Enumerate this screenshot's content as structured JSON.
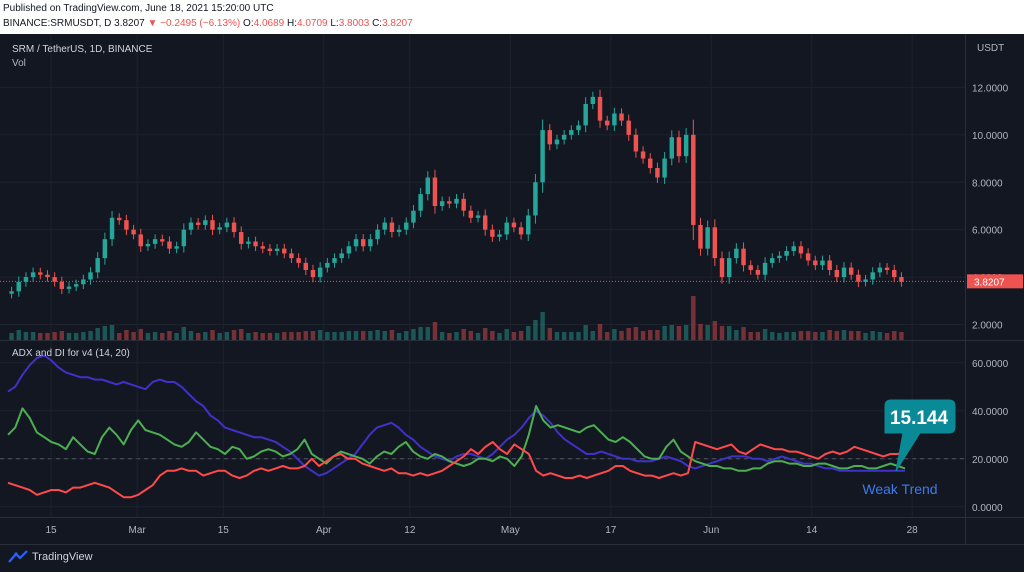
{
  "header": {
    "published": "Published on TradingView.com, June 18, 2021 15:20:00 UTC",
    "symbol": "BINANCE:SRMUSDT, D",
    "last": "3.8207",
    "change": "−0.2495 (−6.13%)",
    "o_label": "O:",
    "o_value": "4.0689",
    "h_label": "H:",
    "h_value": "4.0709",
    "l_label": "L:",
    "l_value": "3.8003",
    "c_label": "C:",
    "c_value": "3.8207"
  },
  "pane_main": {
    "title": "SRM / TetherUS, 1D, BINANCE",
    "volume_label": "Vol",
    "currency": "USDT",
    "price_tag": "3.8207"
  },
  "pane_adx": {
    "title": "ADX and DI for v4 (14, 20)",
    "callout_value": "15.144",
    "annotation": "Weak Trend"
  },
  "footer": {
    "brand": "TradingView"
  },
  "colors": {
    "up": "#26a69a",
    "down": "#ef5350",
    "adx": "#3f32c8",
    "di_plus": "#4caf50",
    "di_minus": "#ff4a4a",
    "callout": "#0a8a96"
  },
  "chart_data": [
    {
      "type": "candlestick",
      "title": "SRM / TetherUS, 1D, BINANCE",
      "x_ticks": [
        "15",
        "Mar",
        "15",
        "Apr",
        "12",
        "May",
        "17",
        "Jun",
        "14",
        "28"
      ],
      "y_ticks": [
        "2.0000",
        "4.0000",
        "6.0000",
        "8.0000",
        "10.0000",
        "12.0000"
      ],
      "ylim": [
        1.6,
        14.0
      ],
      "current_price_line": 3.8207,
      "close": [
        3.4,
        3.8,
        4.0,
        4.2,
        4.1,
        4.0,
        3.8,
        3.5,
        3.6,
        3.7,
        3.9,
        4.2,
        4.8,
        5.6,
        6.5,
        6.4,
        6.0,
        5.8,
        5.3,
        5.4,
        5.6,
        5.5,
        5.2,
        5.3,
        6.0,
        6.3,
        6.2,
        6.4,
        6.0,
        6.1,
        6.3,
        5.9,
        5.4,
        5.5,
        5.3,
        5.2,
        5.1,
        5.2,
        5.0,
        4.8,
        4.6,
        4.3,
        4.0,
        4.4,
        4.6,
        4.8,
        5.0,
        5.3,
        5.6,
        5.3,
        5.6,
        6.0,
        6.3,
        5.9,
        6.0,
        6.3,
        6.8,
        7.5,
        8.2,
        7.0,
        7.2,
        7.1,
        7.3,
        6.8,
        6.5,
        6.6,
        6.0,
        5.7,
        5.8,
        6.3,
        6.1,
        5.8,
        6.6,
        8.0,
        10.2,
        9.6,
        9.8,
        10.0,
        10.2,
        10.4,
        11.3,
        11.6,
        10.6,
        10.4,
        10.9,
        10.6,
        10.0,
        9.3,
        9.0,
        8.6,
        8.2,
        9.0,
        9.9,
        9.1,
        10.0,
        6.2,
        5.2,
        6.1,
        4.8,
        4.0,
        4.8,
        5.2,
        4.5,
        4.3,
        4.1,
        4.6,
        4.8,
        4.9,
        5.1,
        5.3,
        5.0,
        4.7,
        4.5,
        4.7,
        4.3,
        4.0,
        4.4,
        4.1,
        3.8,
        3.9,
        4.2,
        4.4,
        4.3,
        4.0,
        3.8
      ],
      "volume_label": "Vol"
    },
    {
      "type": "line",
      "title": "ADX and DI for v4 (14, 20)",
      "y_ticks": [
        "0.0000",
        "20.0000",
        "40.0000",
        "60.0000"
      ],
      "ylim": [
        -3,
        67
      ],
      "series": [
        {
          "values": [
            48,
            50,
            55,
            59,
            62,
            63,
            61,
            58,
            56,
            55,
            54,
            54,
            53,
            53,
            52,
            51,
            52,
            51,
            50,
            49,
            52,
            53,
            52,
            52,
            50,
            47,
            44,
            42,
            38,
            36,
            33,
            32,
            31,
            30,
            29,
            29,
            28,
            27,
            25,
            23,
            20,
            17,
            15,
            13,
            14,
            16,
            18,
            20,
            22,
            26,
            30,
            33,
            34,
            35,
            33,
            30,
            28,
            25,
            23,
            21,
            20,
            19,
            21,
            22,
            22,
            21,
            20,
            22,
            25,
            28,
            30,
            33,
            37,
            40,
            38,
            35,
            31,
            28,
            26,
            24,
            22,
            22,
            23,
            22,
            21,
            20,
            20,
            19,
            19,
            19,
            20,
            21,
            20,
            19,
            17,
            16,
            17,
            18,
            19,
            20,
            21,
            21,
            21,
            20,
            20,
            19,
            20,
            21,
            20,
            19,
            18,
            18,
            17,
            16,
            16,
            15,
            15,
            15,
            15,
            15,
            15,
            15,
            15,
            15,
            15
          ]
        },
        {
          "values": [
            30,
            33,
            41,
            37,
            31,
            29,
            27,
            26,
            24,
            29,
            26,
            23,
            22,
            29,
            33,
            30,
            26,
            32,
            36,
            32,
            31,
            30,
            28,
            26,
            25,
            27,
            31,
            28,
            25,
            24,
            22,
            25,
            24,
            20,
            21,
            23,
            24,
            23,
            21,
            22,
            24,
            28,
            22,
            20,
            18,
            21,
            23,
            22,
            21,
            20,
            18,
            21,
            23,
            22,
            25,
            27,
            23,
            21,
            20,
            22,
            21,
            19,
            18,
            17,
            18,
            20,
            20,
            19,
            21,
            20,
            17,
            21,
            30,
            42,
            36,
            33,
            34,
            33,
            32,
            31,
            33,
            34,
            31,
            28,
            27,
            29,
            27,
            24,
            21,
            20,
            20,
            25,
            28,
            23,
            21,
            19,
            18,
            17,
            17,
            16,
            16,
            15,
            15,
            16,
            16,
            18,
            19,
            19,
            18,
            18,
            17,
            17,
            18,
            18,
            17,
            16,
            16,
            17,
            17,
            16,
            16,
            17,
            18,
            17,
            16
          ]
        },
        {
          "values": [
            10,
            9,
            8,
            7,
            5,
            6,
            7,
            7,
            6,
            8,
            8,
            9,
            10,
            9,
            8,
            6,
            4,
            4,
            5,
            7,
            9,
            13,
            15,
            15,
            16,
            15,
            15,
            13,
            14,
            15,
            15,
            13,
            12,
            13,
            15,
            16,
            15,
            16,
            17,
            16,
            16,
            17,
            20,
            17,
            19,
            21,
            22,
            20,
            20,
            18,
            17,
            16,
            15,
            16,
            14,
            14,
            13,
            14,
            13,
            14,
            15,
            17,
            19,
            21,
            24,
            22,
            25,
            27,
            24,
            22,
            26,
            24,
            22,
            15,
            13,
            14,
            13,
            12,
            12,
            13,
            12,
            13,
            14,
            15,
            17,
            17,
            15,
            14,
            13,
            13,
            12,
            13,
            14,
            13,
            14,
            27,
            26,
            25,
            24,
            25,
            26,
            23,
            22,
            24,
            26,
            25,
            24,
            24,
            23,
            23,
            22,
            21,
            20,
            22,
            23,
            22,
            23,
            25,
            24,
            23,
            22,
            21,
            22,
            22,
            23
          ]
        }
      ],
      "x_ticks": [
        "15",
        "Mar",
        "15",
        "Apr",
        "12",
        "May",
        "17",
        "Jun",
        "14",
        "28"
      ]
    }
  ]
}
